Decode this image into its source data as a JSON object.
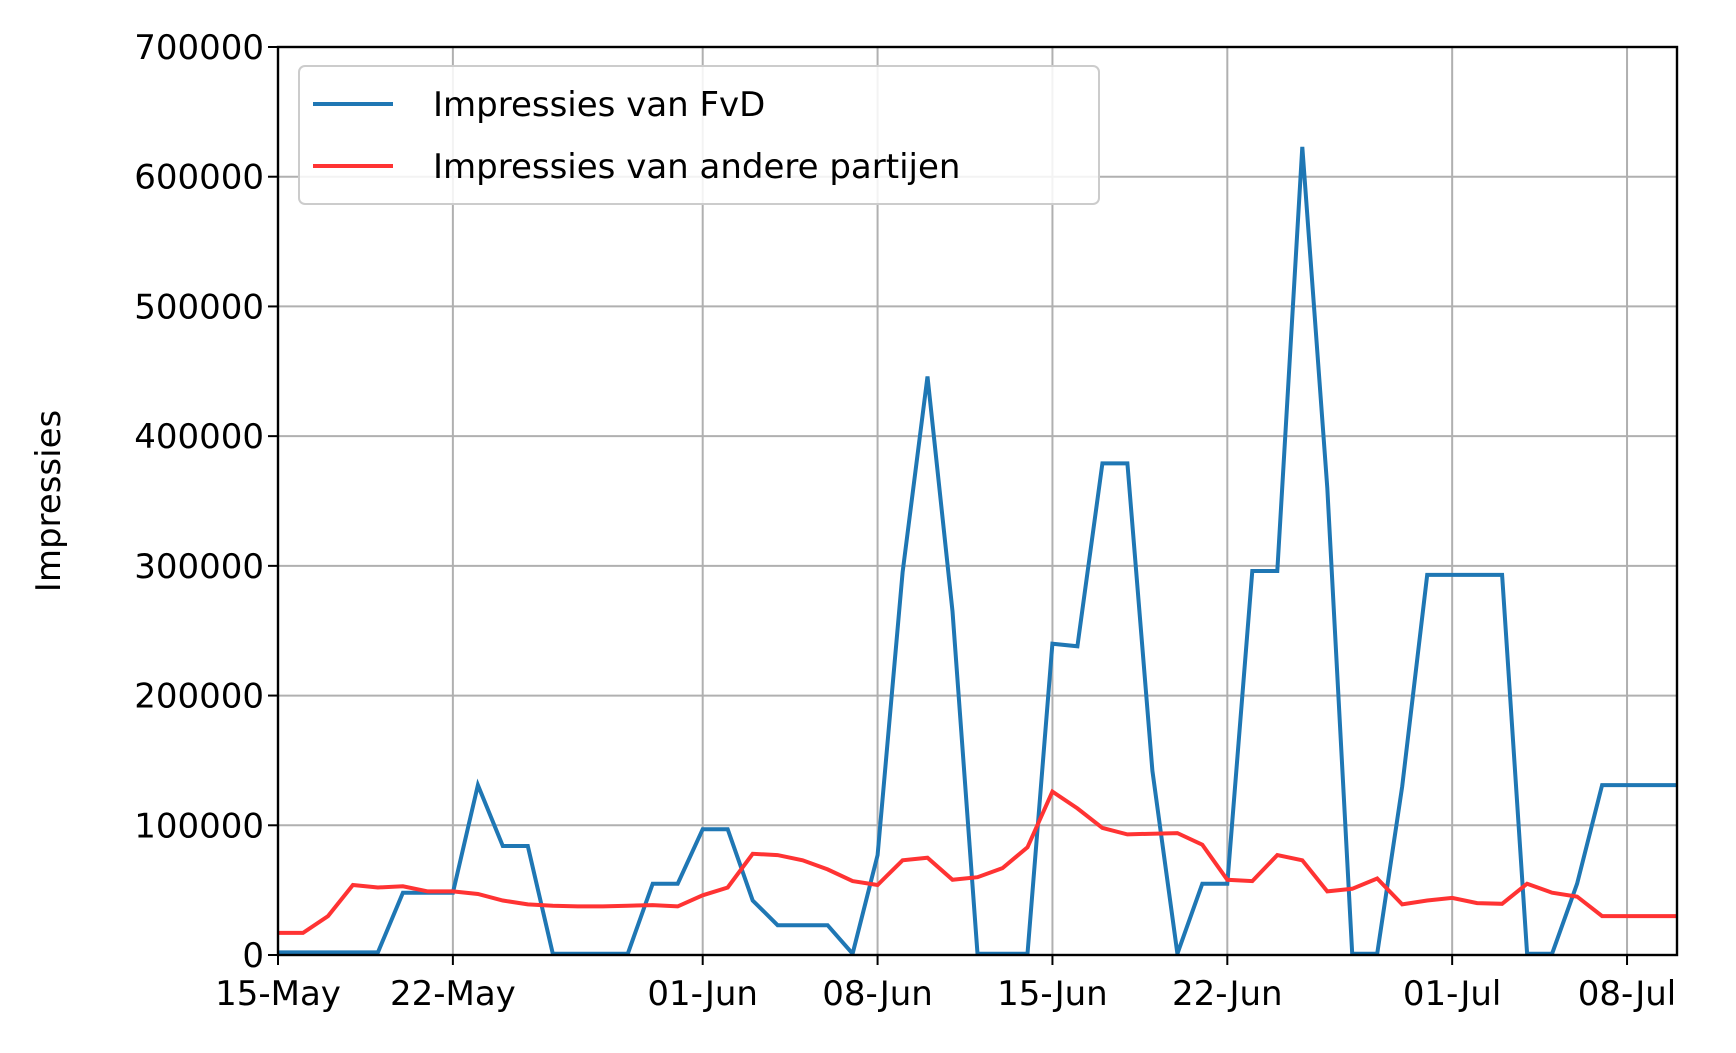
{
  "chart_data": {
    "type": "line",
    "title": "",
    "xlabel": "",
    "ylabel": "Impressies",
    "x_axis": {
      "type": "date",
      "start": "2019-05-15",
      "end": "2019-07-10",
      "ticks": [
        {
          "date": "2019-05-15",
          "label": "15-May"
        },
        {
          "date": "2019-05-22",
          "label": "22-May"
        },
        {
          "date": "2019-06-01",
          "label": "01-Jun"
        },
        {
          "date": "2019-06-08",
          "label": "08-Jun"
        },
        {
          "date": "2019-06-15",
          "label": "15-Jun"
        },
        {
          "date": "2019-06-22",
          "label": "22-Jun"
        },
        {
          "date": "2019-07-01",
          "label": "01-Jul"
        },
        {
          "date": "2019-07-08",
          "label": "08-Jul"
        }
      ]
    },
    "ylim": [
      0,
      700000
    ],
    "yticks": [
      0,
      100000,
      200000,
      300000,
      400000,
      500000,
      600000,
      700000
    ],
    "yticklabels": [
      "0",
      "100000",
      "200000",
      "300000",
      "400000",
      "500000",
      "600000",
      "700000"
    ],
    "grid": true,
    "legend_position": "top-left",
    "series": [
      {
        "name": "Impressies van FvD",
        "color": "#1f77b4",
        "points": [
          [
            "2019-05-15",
            2000
          ],
          [
            "2019-05-16",
            2000
          ],
          [
            "2019-05-17",
            2000
          ],
          [
            "2019-05-18",
            2000
          ],
          [
            "2019-05-19",
            2000
          ],
          [
            "2019-05-20",
            48000
          ],
          [
            "2019-05-21",
            48000
          ],
          [
            "2019-05-22",
            48000
          ],
          [
            "2019-05-23",
            131000
          ],
          [
            "2019-05-24",
            84000
          ],
          [
            "2019-05-25",
            84000
          ],
          [
            "2019-05-26",
            1000
          ],
          [
            "2019-05-27",
            1000
          ],
          [
            "2019-05-28",
            1000
          ],
          [
            "2019-05-29",
            1000
          ],
          [
            "2019-05-30",
            55000
          ],
          [
            "2019-05-31",
            55000
          ],
          [
            "2019-06-01",
            97000
          ],
          [
            "2019-06-02",
            97000
          ],
          [
            "2019-06-03",
            42000
          ],
          [
            "2019-06-04",
            23000
          ],
          [
            "2019-06-05",
            23000
          ],
          [
            "2019-06-06",
            23000
          ],
          [
            "2019-06-07",
            1000
          ],
          [
            "2019-06-08",
            77000
          ],
          [
            "2019-06-09",
            295000
          ],
          [
            "2019-06-10",
            446000
          ],
          [
            "2019-06-11",
            265000
          ],
          [
            "2019-06-12",
            1000
          ],
          [
            "2019-06-13",
            1000
          ],
          [
            "2019-06-14",
            1000
          ],
          [
            "2019-06-15",
            240000
          ],
          [
            "2019-06-16",
            238000
          ],
          [
            "2019-06-17",
            379000
          ],
          [
            "2019-06-18",
            379000
          ],
          [
            "2019-06-19",
            142000
          ],
          [
            "2019-06-20",
            1000
          ],
          [
            "2019-06-21",
            55000
          ],
          [
            "2019-06-22",
            55000
          ],
          [
            "2019-06-23",
            296000
          ],
          [
            "2019-06-24",
            296000
          ],
          [
            "2019-06-25",
            623000
          ],
          [
            "2019-06-26",
            360000
          ],
          [
            "2019-06-27",
            1000
          ],
          [
            "2019-06-28",
            1000
          ],
          [
            "2019-06-29",
            130000
          ],
          [
            "2019-06-30",
            293000
          ],
          [
            "2019-07-01",
            293000
          ],
          [
            "2019-07-02",
            293000
          ],
          [
            "2019-07-03",
            293000
          ],
          [
            "2019-07-04",
            1000
          ],
          [
            "2019-07-05",
            1000
          ],
          [
            "2019-07-06",
            55000
          ],
          [
            "2019-07-07",
            131000
          ],
          [
            "2019-07-08",
            131000
          ],
          [
            "2019-07-09",
            131000
          ],
          [
            "2019-07-10",
            131000
          ]
        ]
      },
      {
        "name": "Impressies van andere partijen",
        "color": "#ff3333",
        "points": [
          [
            "2019-05-15",
            17000
          ],
          [
            "2019-05-16",
            17000
          ],
          [
            "2019-05-17",
            30000
          ],
          [
            "2019-05-18",
            54000
          ],
          [
            "2019-05-19",
            52000
          ],
          [
            "2019-05-20",
            53000
          ],
          [
            "2019-05-21",
            49000
          ],
          [
            "2019-05-22",
            49000
          ],
          [
            "2019-05-23",
            47000
          ],
          [
            "2019-05-24",
            42000
          ],
          [
            "2019-05-25",
            39000
          ],
          [
            "2019-05-26",
            38000
          ],
          [
            "2019-05-27",
            37500
          ],
          [
            "2019-05-28",
            37500
          ],
          [
            "2019-05-29",
            38000
          ],
          [
            "2019-05-30",
            38500
          ],
          [
            "2019-05-31",
            37500
          ],
          [
            "2019-06-01",
            46000
          ],
          [
            "2019-06-02",
            52000
          ],
          [
            "2019-06-03",
            78000
          ],
          [
            "2019-06-04",
            77000
          ],
          [
            "2019-06-05",
            73000
          ],
          [
            "2019-06-06",
            66000
          ],
          [
            "2019-06-07",
            57000
          ],
          [
            "2019-06-08",
            54000
          ],
          [
            "2019-06-09",
            73000
          ],
          [
            "2019-06-10",
            75000
          ],
          [
            "2019-06-11",
            58000
          ],
          [
            "2019-06-12",
            60000
          ],
          [
            "2019-06-13",
            67000
          ],
          [
            "2019-06-14",
            83000
          ],
          [
            "2019-06-15",
            126000
          ],
          [
            "2019-06-16",
            113000
          ],
          [
            "2019-06-17",
            98000
          ],
          [
            "2019-06-18",
            93000
          ],
          [
            "2019-06-19",
            93500
          ],
          [
            "2019-06-20",
            94000
          ],
          [
            "2019-06-21",
            85000
          ],
          [
            "2019-06-22",
            58000
          ],
          [
            "2019-06-23",
            57000
          ],
          [
            "2019-06-24",
            77000
          ],
          [
            "2019-06-25",
            73000
          ],
          [
            "2019-06-26",
            49000
          ],
          [
            "2019-06-27",
            51000
          ],
          [
            "2019-06-28",
            59000
          ],
          [
            "2019-06-29",
            39000
          ],
          [
            "2019-06-30",
            42000
          ],
          [
            "2019-07-01",
            44000
          ],
          [
            "2019-07-02",
            40000
          ],
          [
            "2019-07-03",
            39500
          ],
          [
            "2019-07-04",
            55000
          ],
          [
            "2019-07-05",
            48000
          ],
          [
            "2019-07-06",
            45000
          ],
          [
            "2019-07-07",
            30000
          ],
          [
            "2019-07-08",
            30000
          ],
          [
            "2019-07-09",
            30000
          ],
          [
            "2019-07-10",
            30000
          ]
        ]
      }
    ]
  }
}
